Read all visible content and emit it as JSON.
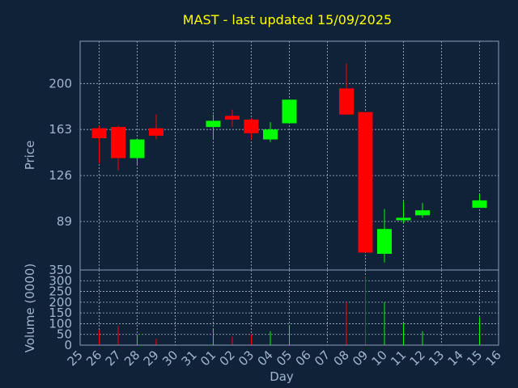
{
  "chart_data": {
    "type": "candlestick",
    "title": "MAST - last updated 15/09/2025",
    "xlabel": "Day",
    "price_panel": {
      "ylabel": "Price",
      "ylim": [
        50,
        234
      ],
      "yticks": [
        89,
        126,
        163,
        200
      ],
      "grid": true
    },
    "volume_panel": {
      "ylabel": "Volume (0000)",
      "ylim": [
        0,
        350
      ],
      "yticks": [
        0,
        50,
        100,
        150,
        200,
        250,
        300,
        350
      ],
      "grid": true
    },
    "x_tick_labels": [
      "25",
      "26",
      "27",
      "28",
      "29",
      "30",
      "31",
      "01",
      "02",
      "03",
      "04",
      "05",
      "06",
      "07",
      "08",
      "09",
      "10",
      "11",
      "12",
      "13",
      "14",
      "15",
      "16"
    ],
    "candles": [
      {
        "day": "26",
        "open": 164,
        "high": 166,
        "low": 136,
        "close": 156,
        "volume": 70
      },
      {
        "day": "27",
        "open": 165,
        "high": 166,
        "low": 130,
        "close": 140,
        "volume": 90
      },
      {
        "day": "28",
        "open": 140,
        "high": 155,
        "low": 135,
        "close": 155,
        "volume": 50
      },
      {
        "day": "29",
        "open": 164,
        "high": 175,
        "low": 155,
        "close": 158,
        "volume": 30
      },
      {
        "day": "01",
        "open": 165,
        "high": 175,
        "low": 155,
        "close": 170,
        "volume": 75
      },
      {
        "day": "02",
        "open": 174,
        "high": 179,
        "low": 165,
        "close": 171,
        "volume": 40
      },
      {
        "day": "03",
        "open": 171,
        "high": 172,
        "low": 155,
        "close": 160,
        "volume": 50
      },
      {
        "day": "04",
        "open": 155,
        "high": 169,
        "low": 153,
        "close": 163,
        "volume": 65
      },
      {
        "day": "05",
        "open": 168,
        "high": 187,
        "low": 168,
        "close": 187,
        "volume": 90
      },
      {
        "day": "08",
        "open": 196,
        "high": 216,
        "low": 175,
        "close": 175,
        "volume": 200
      },
      {
        "day": "09",
        "open": 177,
        "high": 177,
        "low": 64,
        "close": 64,
        "volume": 320
      },
      {
        "day": "10",
        "open": 63,
        "high": 99,
        "low": 56,
        "close": 83,
        "volume": 200
      },
      {
        "day": "11",
        "open": 90,
        "high": 105,
        "low": 88,
        "close": 92,
        "volume": 100
      },
      {
        "day": "12",
        "open": 94,
        "high": 104,
        "low": 92,
        "close": 98,
        "volume": 65
      },
      {
        "day": "15",
        "open": 100,
        "high": 111,
        "low": 100,
        "close": 106,
        "volume": 130
      }
    ],
    "colors": {
      "background": "#0f2238",
      "up": "#00ff00",
      "down": "#ff0000",
      "title": "#ffff00",
      "axis_text": "#9fb6cf"
    }
  }
}
